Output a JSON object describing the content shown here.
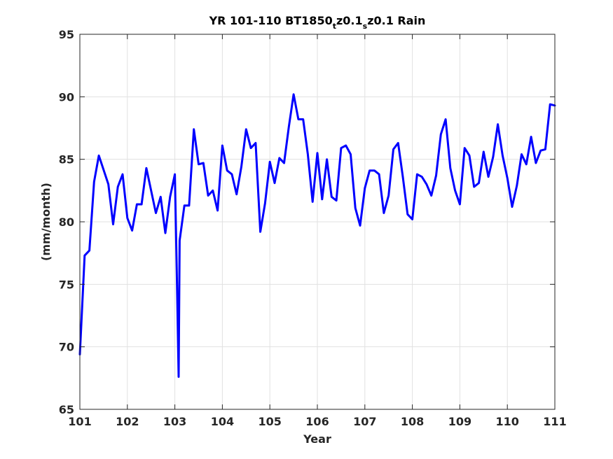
{
  "chart_data": {
    "type": "line",
    "title": {
      "prefix": "YR 101-110 BT1850",
      "sub1": "t",
      "mid1": "z0.1",
      "sub2": "s",
      "suffix": "z0.1 Rain"
    },
    "xlabel": "Year",
    "ylabel": "(mm/month)",
    "xlim": [
      101,
      111
    ],
    "ylim": [
      65,
      95
    ],
    "xticks": [
      101,
      102,
      103,
      104,
      105,
      106,
      107,
      108,
      109,
      110,
      111
    ],
    "yticks": [
      65,
      70,
      75,
      80,
      85,
      90,
      95
    ],
    "grid": true,
    "series": [
      {
        "color": "#0000ff",
        "x": [
          101.0,
          101.1,
          101.2,
          101.3,
          101.4,
          101.6,
          101.7,
          101.8,
          101.9,
          102.0,
          102.1,
          102.2,
          102.3,
          102.4,
          102.6,
          102.7,
          102.8,
          102.9,
          103.0,
          103.05,
          103.08,
          103.1,
          103.2,
          103.3,
          103.4,
          103.5,
          103.6,
          103.7,
          103.8,
          103.9,
          104.0,
          104.1,
          104.2,
          104.3,
          104.4,
          104.5,
          104.6,
          104.7,
          104.8,
          104.9,
          105.0,
          105.1,
          105.2,
          105.3,
          105.4,
          105.5,
          105.6,
          105.7,
          105.8,
          105.9,
          106.0,
          106.1,
          106.2,
          106.3,
          106.4,
          106.5,
          106.6,
          106.7,
          106.8,
          106.9,
          107.0,
          107.1,
          107.2,
          107.3,
          107.4,
          107.5,
          107.6,
          107.7,
          107.8,
          107.9,
          108.0,
          108.1,
          108.2,
          108.3,
          108.4,
          108.5,
          108.6,
          108.7,
          108.8,
          108.9,
          109.0,
          109.1,
          109.2,
          109.3,
          109.4,
          109.5,
          109.6,
          109.7,
          109.8,
          109.9,
          110.0,
          110.1,
          110.2,
          110.3,
          110.4,
          110.5,
          110.6,
          110.7,
          110.8,
          110.9,
          111.0
        ],
        "y": [
          69.4,
          77.3,
          77.7,
          83.2,
          85.3,
          83.0,
          79.8,
          82.8,
          83.8,
          80.3,
          79.3,
          81.4,
          81.4,
          84.3,
          80.7,
          82.0,
          79.1,
          82.0,
          83.8,
          74.0,
          67.6,
          78.5,
          81.3,
          81.3,
          87.4,
          84.6,
          84.7,
          82.1,
          82.5,
          80.9,
          86.1,
          84.1,
          83.8,
          82.2,
          84.4,
          87.4,
          85.9,
          86.3,
          79.2,
          81.5,
          84.8,
          83.1,
          85.1,
          84.7,
          87.6,
          90.2,
          88.2,
          88.2,
          85.4,
          81.6,
          85.5,
          81.8,
          85.0,
          82.0,
          81.7,
          85.9,
          86.1,
          85.4,
          81.1,
          79.7,
          82.7,
          84.1,
          84.1,
          83.8,
          80.7,
          82.1,
          85.8,
          86.3,
          83.6,
          80.6,
          80.2,
          83.8,
          83.6,
          83.0,
          82.1,
          83.7,
          87.0,
          88.2,
          84.3,
          82.5,
          81.4,
          85.9,
          85.3,
          82.8,
          83.1,
          85.6,
          83.6,
          85.2,
          87.8,
          85.3,
          83.5,
          81.2,
          82.9,
          85.4,
          84.6,
          86.8,
          84.7,
          85.7,
          85.8,
          89.4,
          89.3
        ]
      }
    ]
  }
}
